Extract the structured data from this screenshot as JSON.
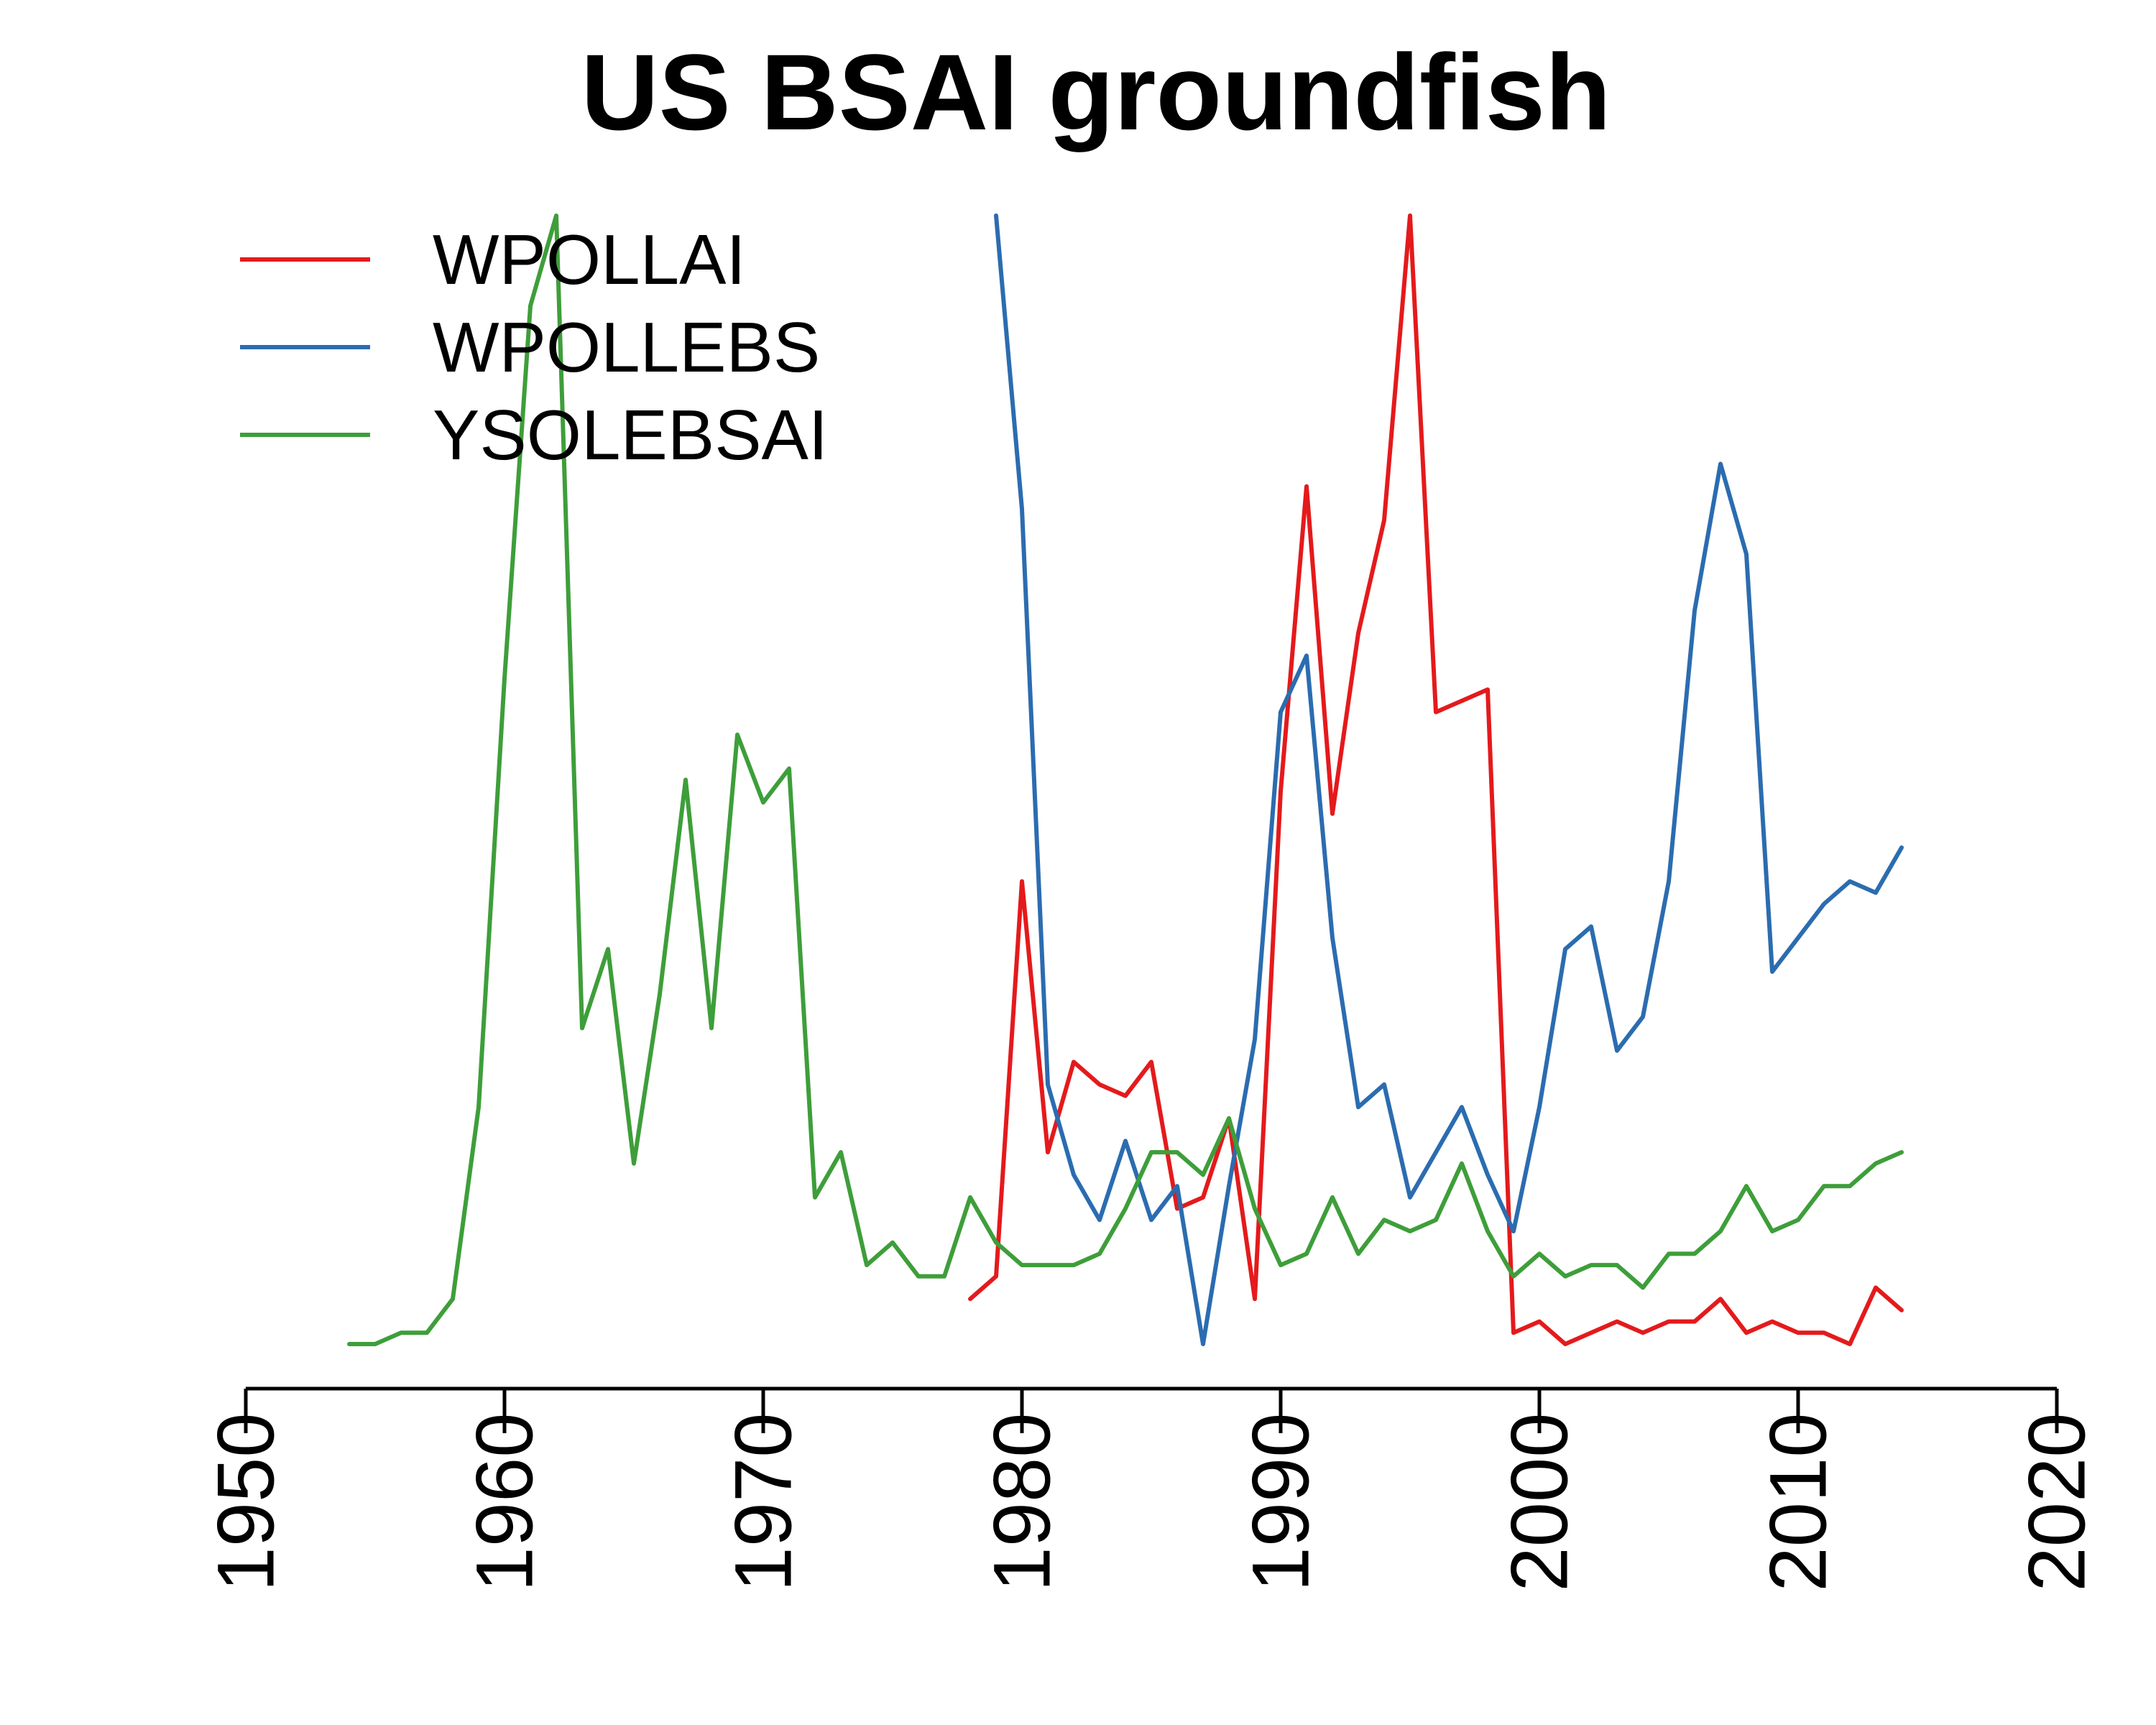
{
  "chart_data": {
    "type": "line",
    "title": "US BSAI groundfish",
    "xlabel": "",
    "ylabel": "",
    "xlim": [
      1950,
      2020
    ],
    "ylim": [
      0,
      1
    ],
    "x_ticks": [
      "1950",
      "1960",
      "1970",
      "1980",
      "1990",
      "2000",
      "2010",
      "2020"
    ],
    "y_axis_visible": false,
    "grid": false,
    "legend_position": "top-left",
    "series": [
      {
        "name": "WPOLLAI",
        "color": "#E41A1C",
        "x": [
          1978,
          1979,
          1980,
          1981,
          1982,
          1983,
          1984,
          1985,
          1986,
          1987,
          1988,
          1989,
          1990,
          1991,
          1992,
          1993,
          1994,
          1995,
          1996,
          1997,
          1998,
          1999,
          2000,
          2001,
          2002,
          2003,
          2004,
          2005,
          2006,
          2007,
          2008,
          2009,
          2010,
          2011,
          2012,
          2013,
          2014
        ],
        "y": [
          0.04,
          0.06,
          0.41,
          0.17,
          0.25,
          0.23,
          0.22,
          0.25,
          0.12,
          0.13,
          0.2,
          0.04,
          0.49,
          0.76,
          0.47,
          0.63,
          0.73,
          1.0,
          0.56,
          0.57,
          0.58,
          0.01,
          0.02,
          0.0,
          0.01,
          0.02,
          0.01,
          0.02,
          0.02,
          0.04,
          0.01,
          0.02,
          0.01,
          0.01,
          0.0,
          0.05,
          0.03
        ]
      },
      {
        "name": "WPOLLEBS",
        "color": "#2B6CB0",
        "x": [
          1979,
          1980,
          1981,
          1982,
          1983,
          1984,
          1985,
          1986,
          1987,
          1988,
          1989,
          1990,
          1991,
          1992,
          1993,
          1994,
          1995,
          1996,
          1997,
          1998,
          1999,
          2000,
          2001,
          2002,
          2003,
          2004,
          2005,
          2006,
          2007,
          2008,
          2009,
          2010,
          2011,
          2012,
          2013,
          2014
        ],
        "y": [
          1.0,
          0.74,
          0.23,
          0.15,
          0.11,
          0.18,
          0.11,
          0.14,
          0.0,
          0.14,
          0.27,
          0.56,
          0.61,
          0.36,
          0.21,
          0.23,
          0.13,
          0.17,
          0.21,
          0.15,
          0.1,
          0.21,
          0.35,
          0.37,
          0.26,
          0.29,
          0.41,
          0.65,
          0.78,
          0.7,
          0.33,
          0.36,
          0.39,
          0.41,
          0.4,
          0.44
        ]
      },
      {
        "name": "YSOLEBSAI",
        "color": "#3E9E3A",
        "x": [
          1954,
          1955,
          1956,
          1957,
          1958,
          1959,
          1960,
          1961,
          1962,
          1963,
          1964,
          1965,
          1966,
          1967,
          1968,
          1969,
          1970,
          1971,
          1972,
          1973,
          1974,
          1975,
          1976,
          1977,
          1978,
          1979,
          1980,
          1981,
          1982,
          1983,
          1984,
          1985,
          1986,
          1987,
          1988,
          1989,
          1990,
          1991,
          1992,
          1993,
          1994,
          1995,
          1996,
          1997,
          1998,
          1999,
          2000,
          2001,
          2002,
          2003,
          2004,
          2005,
          2006,
          2007,
          2008,
          2009,
          2010,
          2011,
          2012,
          2013,
          2014
        ],
        "y": [
          0.0,
          0.0,
          0.01,
          0.01,
          0.04,
          0.21,
          0.59,
          0.92,
          1.0,
          0.28,
          0.35,
          0.16,
          0.31,
          0.5,
          0.28,
          0.54,
          0.48,
          0.51,
          0.13,
          0.17,
          0.07,
          0.09,
          0.06,
          0.06,
          0.13,
          0.09,
          0.07,
          0.07,
          0.07,
          0.08,
          0.12,
          0.17,
          0.17,
          0.15,
          0.2,
          0.12,
          0.07,
          0.08,
          0.13,
          0.08,
          0.11,
          0.1,
          0.11,
          0.16,
          0.1,
          0.06,
          0.08,
          0.06,
          0.07,
          0.07,
          0.05,
          0.08,
          0.08,
          0.1,
          0.14,
          0.1,
          0.11,
          0.14,
          0.14,
          0.16,
          0.17
        ]
      }
    ]
  }
}
